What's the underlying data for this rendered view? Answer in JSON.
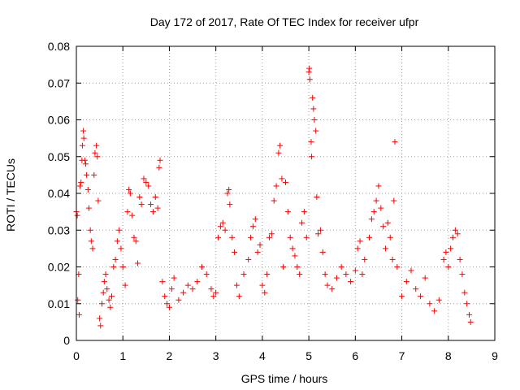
{
  "chart_data": {
    "type": "scatter",
    "title": "Day 172 of 2017, Rate Of TEC Index for receiver ufpr",
    "xlabel": "GPS time / hours",
    "ylabel": "ROTI / TECUs",
    "xlim": [
      0,
      9
    ],
    "ylim": [
      0,
      0.08
    ],
    "x_ticks": [
      "0",
      "1",
      "2",
      "3",
      "4",
      "5",
      "6",
      "7",
      "8",
      "9"
    ],
    "y_ticks": [
      "0",
      "0.01",
      "0.02",
      "0.03",
      "0.04",
      "0.05",
      "0.06",
      "0.07",
      "0.08"
    ],
    "x_tick_values": [
      0,
      1,
      2,
      3,
      4,
      5,
      6,
      7,
      8,
      9
    ],
    "y_tick_values": [
      0,
      0.01,
      0.02,
      0.03,
      0.04,
      0.05,
      0.06,
      0.07,
      0.08
    ],
    "grid": true,
    "marker": "+",
    "color": "#ff0000",
    "series": [
      {
        "name": "ROTI",
        "points": [
          [
            0.0,
            0.035
          ],
          [
            0.02,
            0.034
          ],
          [
            0.03,
            0.011
          ],
          [
            0.05,
            0.018
          ],
          [
            0.06,
            0.007
          ],
          [
            0.08,
            0.042
          ],
          [
            0.1,
            0.043
          ],
          [
            0.12,
            0.049
          ],
          [
            0.13,
            0.053
          ],
          [
            0.15,
            0.057
          ],
          [
            0.16,
            0.055
          ],
          [
            0.18,
            0.049
          ],
          [
            0.2,
            0.048
          ],
          [
            0.22,
            0.045
          ],
          [
            0.25,
            0.041
          ],
          [
            0.27,
            0.036
          ],
          [
            0.3,
            0.03
          ],
          [
            0.32,
            0.027
          ],
          [
            0.35,
            0.025
          ],
          [
            0.38,
            0.045
          ],
          [
            0.4,
            0.051
          ],
          [
            0.43,
            0.053
          ],
          [
            0.45,
            0.05
          ],
          [
            0.47,
            0.038
          ],
          [
            0.5,
            0.006
          ],
          [
            0.52,
            0.004
          ],
          [
            0.55,
            0.01
          ],
          [
            0.58,
            0.013
          ],
          [
            0.6,
            0.016
          ],
          [
            0.63,
            0.018
          ],
          [
            0.66,
            0.014
          ],
          [
            0.7,
            0.011
          ],
          [
            0.73,
            0.009
          ],
          [
            0.76,
            0.012
          ],
          [
            0.8,
            0.02
          ],
          [
            0.84,
            0.022
          ],
          [
            0.88,
            0.027
          ],
          [
            0.92,
            0.03
          ],
          [
            0.96,
            0.025
          ],
          [
            1.0,
            0.02
          ],
          [
            1.05,
            0.015
          ],
          [
            1.1,
            0.035
          ],
          [
            1.13,
            0.041
          ],
          [
            1.16,
            0.04
          ],
          [
            1.2,
            0.034
          ],
          [
            1.24,
            0.028
          ],
          [
            1.28,
            0.027
          ],
          [
            1.32,
            0.021
          ],
          [
            1.36,
            0.039
          ],
          [
            1.4,
            0.037
          ],
          [
            1.45,
            0.044
          ],
          [
            1.5,
            0.043
          ],
          [
            1.55,
            0.042
          ],
          [
            1.6,
            0.037
          ],
          [
            1.65,
            0.035
          ],
          [
            1.7,
            0.039
          ],
          [
            1.75,
            0.036
          ],
          [
            1.78,
            0.047
          ],
          [
            1.8,
            0.049
          ],
          [
            1.85,
            0.016
          ],
          [
            1.9,
            0.012
          ],
          [
            1.95,
            0.01
          ],
          [
            2.0,
            0.009
          ],
          [
            2.05,
            0.014
          ],
          [
            2.1,
            0.017
          ],
          [
            2.2,
            0.011
          ],
          [
            2.3,
            0.013
          ],
          [
            2.4,
            0.015
          ],
          [
            2.5,
            0.014
          ],
          [
            2.6,
            0.016
          ],
          [
            2.7,
            0.02
          ],
          [
            2.8,
            0.018
          ],
          [
            2.9,
            0.014
          ],
          [
            2.95,
            0.012
          ],
          [
            3.0,
            0.013
          ],
          [
            3.05,
            0.028
          ],
          [
            3.1,
            0.031
          ],
          [
            3.15,
            0.032
          ],
          [
            3.2,
            0.03
          ],
          [
            3.25,
            0.04
          ],
          [
            3.28,
            0.041
          ],
          [
            3.3,
            0.037
          ],
          [
            3.35,
            0.028
          ],
          [
            3.4,
            0.024
          ],
          [
            3.45,
            0.015
          ],
          [
            3.5,
            0.012
          ],
          [
            3.6,
            0.018
          ],
          [
            3.7,
            0.022
          ],
          [
            3.75,
            0.028
          ],
          [
            3.8,
            0.031
          ],
          [
            3.85,
            0.033
          ],
          [
            3.9,
            0.024
          ],
          [
            3.95,
            0.026
          ],
          [
            4.0,
            0.015
          ],
          [
            4.05,
            0.013
          ],
          [
            4.1,
            0.018
          ],
          [
            4.15,
            0.028
          ],
          [
            4.2,
            0.029
          ],
          [
            4.25,
            0.038
          ],
          [
            4.3,
            0.042
          ],
          [
            4.35,
            0.051
          ],
          [
            4.38,
            0.053
          ],
          [
            4.42,
            0.044
          ],
          [
            4.45,
            0.02
          ],
          [
            4.5,
            0.043
          ],
          [
            4.55,
            0.035
          ],
          [
            4.6,
            0.028
          ],
          [
            4.65,
            0.025
          ],
          [
            4.7,
            0.023
          ],
          [
            4.75,
            0.02
          ],
          [
            4.8,
            0.018
          ],
          [
            4.85,
            0.032
          ],
          [
            4.9,
            0.035
          ],
          [
            4.95,
            0.028
          ],
          [
            5.0,
            0.073
          ],
          [
            5.01,
            0.074
          ],
          [
            5.02,
            0.071
          ],
          [
            5.05,
            0.054
          ],
          [
            5.06,
            0.05
          ],
          [
            5.08,
            0.066
          ],
          [
            5.1,
            0.063
          ],
          [
            5.12,
            0.06
          ],
          [
            5.15,
            0.057
          ],
          [
            5.17,
            0.039
          ],
          [
            5.2,
            0.029
          ],
          [
            5.25,
            0.03
          ],
          [
            5.3,
            0.024
          ],
          [
            5.35,
            0.018
          ],
          [
            5.4,
            0.015
          ],
          [
            5.5,
            0.014
          ],
          [
            5.6,
            0.017
          ],
          [
            5.7,
            0.02
          ],
          [
            5.8,
            0.018
          ],
          [
            5.9,
            0.016
          ],
          [
            6.0,
            0.019
          ],
          [
            6.05,
            0.025
          ],
          [
            6.1,
            0.027
          ],
          [
            6.15,
            0.018
          ],
          [
            6.2,
            0.022
          ],
          [
            6.3,
            0.028
          ],
          [
            6.35,
            0.033
          ],
          [
            6.4,
            0.035
          ],
          [
            6.45,
            0.038
          ],
          [
            6.5,
            0.042
          ],
          [
            6.55,
            0.036
          ],
          [
            6.6,
            0.031
          ],
          [
            6.65,
            0.025
          ],
          [
            6.7,
            0.032
          ],
          [
            6.75,
            0.028
          ],
          [
            6.8,
            0.022
          ],
          [
            6.83,
            0.038
          ],
          [
            6.85,
            0.054
          ],
          [
            6.9,
            0.02
          ],
          [
            7.0,
            0.012
          ],
          [
            7.1,
            0.016
          ],
          [
            7.2,
            0.019
          ],
          [
            7.3,
            0.014
          ],
          [
            7.4,
            0.012
          ],
          [
            7.5,
            0.017
          ],
          [
            7.6,
            0.01
          ],
          [
            7.7,
            0.008
          ],
          [
            7.8,
            0.011
          ],
          [
            7.9,
            0.022
          ],
          [
            7.95,
            0.024
          ],
          [
            8.0,
            0.02
          ],
          [
            8.05,
            0.025
          ],
          [
            8.1,
            0.028
          ],
          [
            8.15,
            0.03
          ],
          [
            8.2,
            0.029
          ],
          [
            8.25,
            0.022
          ],
          [
            8.3,
            0.018
          ],
          [
            8.35,
            0.013
          ],
          [
            8.4,
            0.01
          ],
          [
            8.45,
            0.007
          ],
          [
            8.48,
            0.005
          ]
        ]
      }
    ]
  }
}
